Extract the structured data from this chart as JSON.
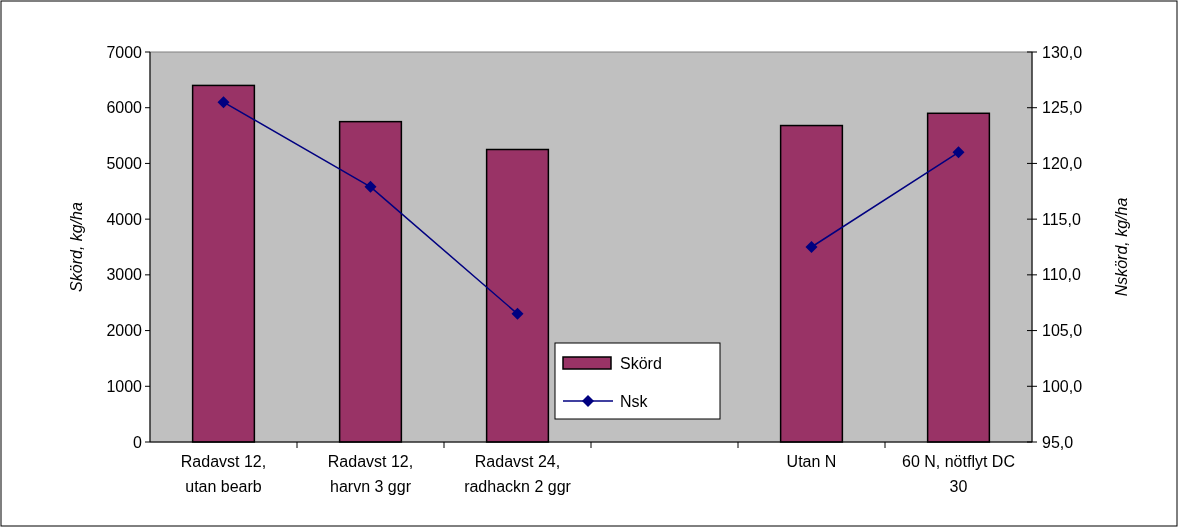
{
  "chart_data": {
    "type": "bar",
    "categories": [
      "Radavst 12, utan bearb",
      "Radavst 12, harvn 3 ggr",
      "Radavst 24, radhackn 2 ggr",
      null,
      "Utan N",
      "60 N, nötflyt DC 30"
    ],
    "series": [
      {
        "name": "Skörd",
        "color": "#993366",
        "values": [
          6400,
          5750,
          5250,
          null,
          5680,
          5900
        ]
      },
      {
        "name": "Nsk",
        "type": "line",
        "axis": "y2",
        "color": "#000080",
        "marker": "diamond",
        "values": [
          125.5,
          117.9,
          106.5,
          null,
          112.5,
          121.0
        ]
      }
    ],
    "ylabel": "Skörd, kg/ha",
    "y2label": "Nskörd, kg/ha",
    "ylim": [
      0,
      7000
    ],
    "yticks": [
      0,
      1000,
      2000,
      3000,
      4000,
      5000,
      6000,
      7000
    ],
    "y2lim": [
      95,
      130
    ],
    "y2ticks": [
      {
        "value": 95,
        "label": "95,0"
      },
      {
        "value": 100,
        "label": "100,0"
      },
      {
        "value": 105,
        "label": "105,0"
      },
      {
        "value": 110,
        "label": "110,0"
      },
      {
        "value": 115,
        "label": "115,0"
      },
      {
        "value": 120,
        "label": "120,0"
      },
      {
        "value": 125,
        "label": "125,0"
      },
      {
        "value": 130,
        "label": "130,0"
      }
    ],
    "grid": false,
    "legend": "bottom"
  }
}
